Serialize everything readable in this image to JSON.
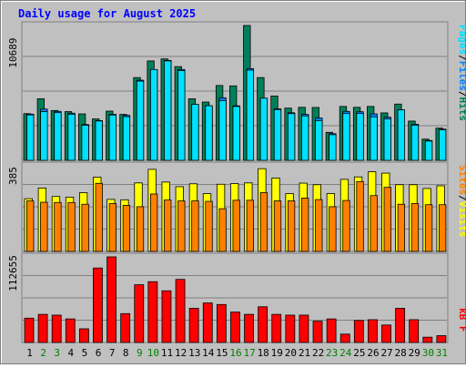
{
  "chart_data": [
    {
      "type": "bar",
      "title": "Daily usage for August 2025",
      "panel": "top",
      "y_label_max": "10689",
      "ylim": [
        0,
        10689
      ],
      "categories": [
        "1",
        "2",
        "3",
        "4",
        "5",
        "6",
        "7",
        "8",
        "9",
        "10",
        "11",
        "12",
        "13",
        "14",
        "15",
        "16",
        "17",
        "18",
        "19",
        "20",
        "21",
        "22",
        "23",
        "24",
        "25",
        "26",
        "27",
        "28",
        "29",
        "30",
        "31"
      ],
      "weekend_days": [
        "2",
        "3",
        "9",
        "10",
        "16",
        "17",
        "23",
        "24",
        "30",
        "31"
      ],
      "series": [
        {
          "name": "Hits",
          "color": "#00805A",
          "values": [
            3700,
            4880,
            3950,
            3860,
            3680,
            3280,
            3900,
            3640,
            6560,
            7880,
            8040,
            7430,
            4880,
            4620,
            5930,
            5900,
            10689,
            6560,
            5100,
            4140,
            4200,
            4190,
            2220,
            4270,
            4200,
            4270,
            3760,
            4460,
            3110,
            1680,
            2550
          ]
        },
        {
          "name": "Files",
          "color": "#0080FF",
          "values": [
            3660,
            4060,
            3880,
            3740,
            2840,
            3150,
            3650,
            3560,
            6350,
            7180,
            7920,
            7200,
            4410,
            4320,
            4960,
            4320,
            7270,
            4860,
            4080,
            3770,
            3640,
            3350,
            2110,
            3880,
            3850,
            3680,
            3420,
            3990,
            2860,
            1570,
            2470
          ]
        },
        {
          "name": "Pages",
          "color": "#00E0FF",
          "values": [
            3600,
            3860,
            3780,
            3650,
            2780,
            3120,
            3590,
            3460,
            6280,
            7200,
            7880,
            7120,
            4440,
            4330,
            4730,
            4270,
            7150,
            4930,
            4020,
            3700,
            3520,
            3150,
            2030,
            3710,
            3710,
            3450,
            3290,
            4000,
            2790,
            1530,
            2420
          ]
        }
      ]
    },
    {
      "type": "bar",
      "panel": "middle",
      "y_label_max": "385",
      "ylim": [
        0,
        385
      ],
      "categories": [
        "1",
        "2",
        "3",
        "4",
        "5",
        "6",
        "7",
        "8",
        "9",
        "10",
        "11",
        "12",
        "13",
        "14",
        "15",
        "16",
        "17",
        "18",
        "19",
        "20",
        "21",
        "22",
        "23",
        "24",
        "25",
        "26",
        "27",
        "28",
        "29",
        "30",
        "31"
      ],
      "series": [
        {
          "name": "Visits",
          "color": "#FFFF00",
          "values": [
            237,
            285,
            247,
            244,
            264,
            334,
            234,
            232,
            308,
            369,
            312,
            291,
            304,
            260,
            302,
            305,
            308,
            372,
            330,
            260,
            307,
            300,
            260,
            324,
            335,
            358,
            352,
            300,
            300,
            283,
            295
          ]
        },
        {
          "name": "Sites",
          "color": "#FF8000",
          "values": [
            227,
            221,
            220,
            220,
            212,
            306,
            215,
            207,
            201,
            258,
            231,
            227,
            227,
            225,
            192,
            230,
            230,
            264,
            227,
            227,
            240,
            233,
            201,
            229,
            314,
            251,
            288,
            212,
            215,
            210,
            210
          ]
        }
      ]
    },
    {
      "type": "bar",
      "panel": "bottom",
      "y_label_max": "112655",
      "ylim": [
        0,
        112655
      ],
      "categories": [
        "1",
        "2",
        "3",
        "4",
        "5",
        "6",
        "7",
        "8",
        "9",
        "10",
        "11",
        "12",
        "13",
        "14",
        "15",
        "16",
        "17",
        "18",
        "19",
        "20",
        "21",
        "22",
        "23",
        "24",
        "25",
        "26",
        "27",
        "28",
        "29",
        "30",
        "31"
      ],
      "series": [
        {
          "name": "KB F",
          "color": "#FF0000",
          "values": [
            32000,
            37000,
            36000,
            31000,
            18000,
            98000,
            112655,
            38000,
            76000,
            80000,
            68000,
            83000,
            45000,
            52000,
            50000,
            40000,
            37000,
            47000,
            37000,
            36000,
            36000,
            28000,
            31000,
            11000,
            29000,
            30000,
            23000,
            45000,
            30000,
            7000,
            9000
          ]
        }
      ]
    }
  ],
  "legend_right": {
    "top": [
      {
        "text": "Pages",
        "color": "#00E0FF"
      },
      {
        "text": "/",
        "color": "#000000"
      },
      {
        "text": "Files",
        "color": "#0080FF"
      },
      {
        "text": "/",
        "color": "#000000"
      },
      {
        "text": "Hits",
        "color": "#00805A"
      }
    ],
    "middle": [
      {
        "text": "Sites",
        "color": "#FF8000"
      },
      {
        "text": "/",
        "color": "#000000"
      },
      {
        "text": "Visits",
        "color": "#FFFF00"
      }
    ],
    "bottom": [
      {
        "text": "kB F",
        "color": "#FF0000"
      }
    ]
  },
  "colors": {
    "frame_bg": "#C0C0C0",
    "plot_bg": "#C0C0C0",
    "title": "#0000FF",
    "axis_label": "#000000",
    "weekday_label": "#000000",
    "weekend_label": "#008000"
  }
}
